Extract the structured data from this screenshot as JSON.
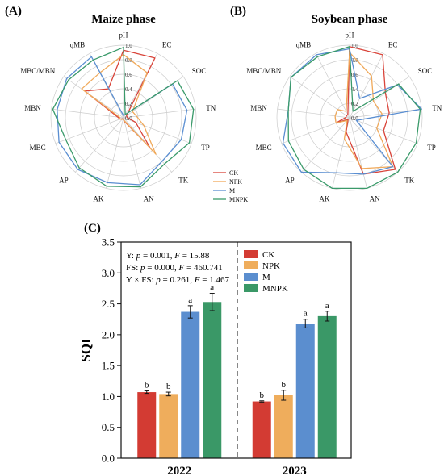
{
  "panels": {
    "a_label": "(A)",
    "b_label": "(B)",
    "c_label": "(C)"
  },
  "radar_axes": [
    "pH",
    "EC",
    "SOC",
    "TN",
    "TP",
    "TK",
    "AN",
    "AK",
    "AP",
    "MBC",
    "MBN",
    "MBC/MBN",
    "qMB"
  ],
  "radar_ticks": [
    "0.0",
    "0.2",
    "0.4",
    "0.6",
    "0.8",
    "1.0"
  ],
  "radar_legend": [
    "CK",
    "NPK",
    "M",
    "MNPK"
  ],
  "colors": {
    "CK": "#d9443a",
    "NPK": "#f0a95a",
    "M": "#5a8ed1",
    "MNPK": "#3a9a6a",
    "CK_bar": "#d33b33",
    "NPK_bar": "#efad5c",
    "M_bar": "#5b8ecf",
    "MNPK_bar": "#3a9867",
    "grid": "#cccccc",
    "divider": "#888888"
  },
  "chart_data": [
    {
      "type": "radar",
      "title": "Maize phase",
      "axes": [
        "pH",
        "EC",
        "SOC",
        "TN",
        "TP",
        "TK",
        "AN",
        "AK",
        "AP",
        "MBC",
        "MBN",
        "MBC/MBN",
        "qMB"
      ],
      "range": [
        0,
        1
      ],
      "series": [
        {
          "name": "CK",
          "values": [
            0.93,
            0.93,
            0.05,
            0.05,
            0.18,
            0.55,
            0.05,
            0.02,
            0.02,
            0.05,
            0.08,
            0.65,
            0.45
          ]
        },
        {
          "name": "NPK",
          "values": [
            0.87,
            0.7,
            0.15,
            0.18,
            0.3,
            0.67,
            0.04,
            0.02,
            0.03,
            0.05,
            0.05,
            0.7,
            0.7
          ]
        },
        {
          "name": "M",
          "values": [
            0.03,
            0.05,
            0.82,
            0.88,
            0.85,
            0.8,
            0.95,
            0.92,
            0.95,
            0.95,
            0.92,
            0.95,
            0.95
          ]
        },
        {
          "name": "MNPK",
          "values": [
            0.97,
            0.05,
            0.9,
            0.97,
            0.97,
            0.85,
            0.98,
            0.97,
            0.92,
            0.85,
            0.98,
            0.92,
            0.9
          ]
        }
      ]
    },
    {
      "type": "radar",
      "title": "Soybean phase",
      "axes": [
        "pH",
        "EC",
        "SOC",
        "TN",
        "TP",
        "TK",
        "AN",
        "AK",
        "AP",
        "MBC",
        "MBN",
        "MBC/MBN",
        "qMB"
      ],
      "range": [
        0,
        1
      ],
      "series": [
        {
          "name": "CK",
          "values": [
            0.98,
            0.98,
            0.6,
            0.55,
            0.5,
            0.95,
            0.8,
            0.2,
            0.03,
            0.2,
            0.05,
            0.05,
            0.05
          ]
        },
        {
          "name": "NPK",
          "values": [
            0.9,
            0.65,
            0.4,
            0.45,
            0.4,
            0.9,
            0.72,
            0.3,
            0.05,
            0.2,
            0.2,
            0.2,
            0.1
          ]
        },
        {
          "name": "M",
          "values": [
            0.95,
            0.3,
            0.8,
            1.0,
            0.1,
            0.9,
            0.8,
            0.78,
            1.0,
            0.98,
            0.85,
            0.98,
            0.98
          ]
        },
        {
          "name": "MNPK",
          "values": [
            0.98,
            0.1,
            0.82,
            0.98,
            0.98,
            1.0,
            1.0,
            1.0,
            0.95,
            0.9,
            0.85,
            0.98,
            0.95
          ]
        }
      ]
    },
    {
      "type": "bar",
      "ylabel": "SQI",
      "categories": [
        "2022",
        "2023"
      ],
      "ylim": [
        0,
        3.5
      ],
      "yticks": [
        "0.0",
        "0.5",
        "1.0",
        "1.5",
        "2.0",
        "2.5",
        "3.0",
        "3.5"
      ],
      "series": [
        {
          "name": "CK",
          "values": [
            1.07,
            0.92
          ],
          "errors": [
            0.02,
            0.01
          ],
          "letters": [
            "b",
            "b"
          ]
        },
        {
          "name": "NPK",
          "values": [
            1.04,
            1.02
          ],
          "errors": [
            0.03,
            0.08
          ],
          "letters": [
            "b",
            "b"
          ]
        },
        {
          "name": "M",
          "values": [
            2.37,
            2.18
          ],
          "errors": [
            0.1,
            0.07
          ],
          "letters": [
            "a",
            "a"
          ]
        },
        {
          "name": "MNPK",
          "values": [
            2.53,
            2.3
          ],
          "errors": [
            0.14,
            0.08
          ],
          "letters": [
            "a",
            "a"
          ]
        }
      ],
      "stats": {
        "line1": "Y: p = 0.001, F = 15.88",
        "line2": "FS:  p = 0.000, F = 460.741",
        "line3": "Y × FS: p = 0.261, F = 1.467"
      },
      "legend": [
        "CK",
        "NPK",
        "M",
        "MNPK"
      ]
    }
  ]
}
